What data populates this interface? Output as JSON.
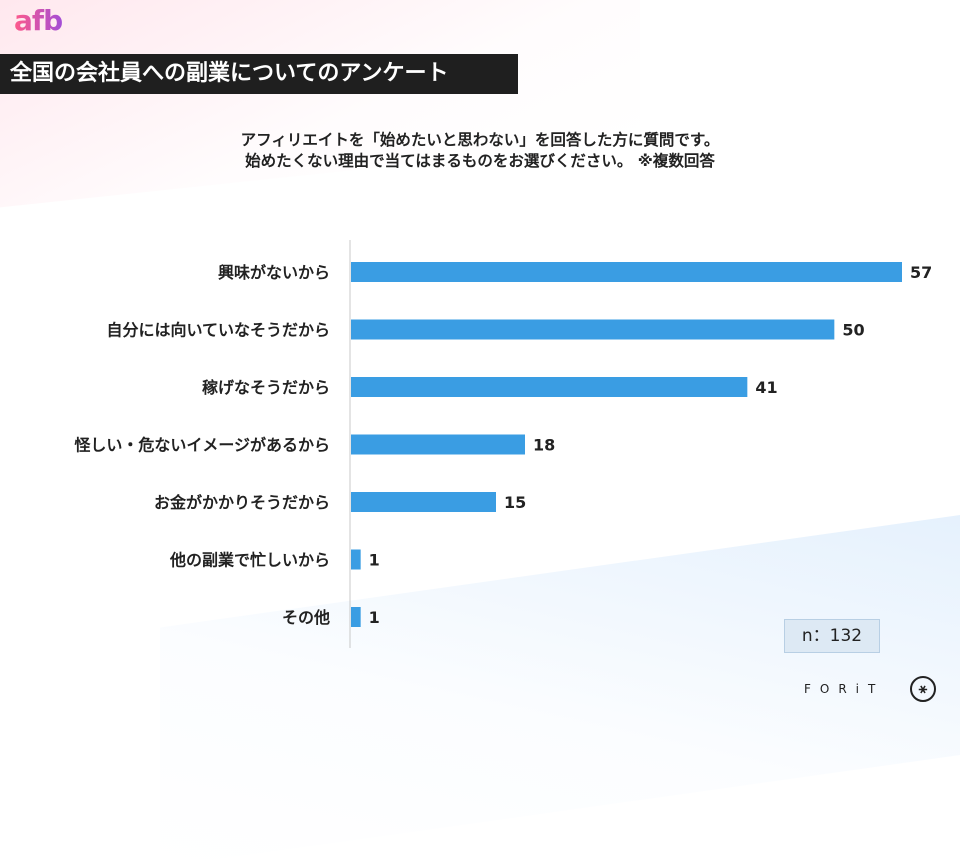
{
  "brand": {
    "logo_text": "afb",
    "footer_text": "FORiT",
    "footer_mark": "⚹"
  },
  "header": {
    "title": "全国の会社員への副業についてのアンケート"
  },
  "question": {
    "line1": "アフィリエイトを「始めたいと思わない」を回答した方に質問です。",
    "line2": "始めたくない理由で当てはまるものをお選びください。 ※複数回答"
  },
  "sample": {
    "label": "n：132"
  },
  "colors": {
    "bar": "#3a9de3",
    "axis": "#c8c8c8",
    "text": "#222222"
  },
  "chart_data": {
    "type": "bar",
    "orientation": "horizontal",
    "categories": [
      "興味がないから",
      "自分には向いていなそうだから",
      "稼げなそうだから",
      "怪しい・危ないイメージがあるから",
      "お金がかかりそうだから",
      "他の副業で忙しいから",
      "その他"
    ],
    "values": [
      57,
      50,
      41,
      18,
      15,
      1,
      1
    ],
    "xlim": [
      0,
      57
    ],
    "grid": false,
    "legend": "none"
  }
}
